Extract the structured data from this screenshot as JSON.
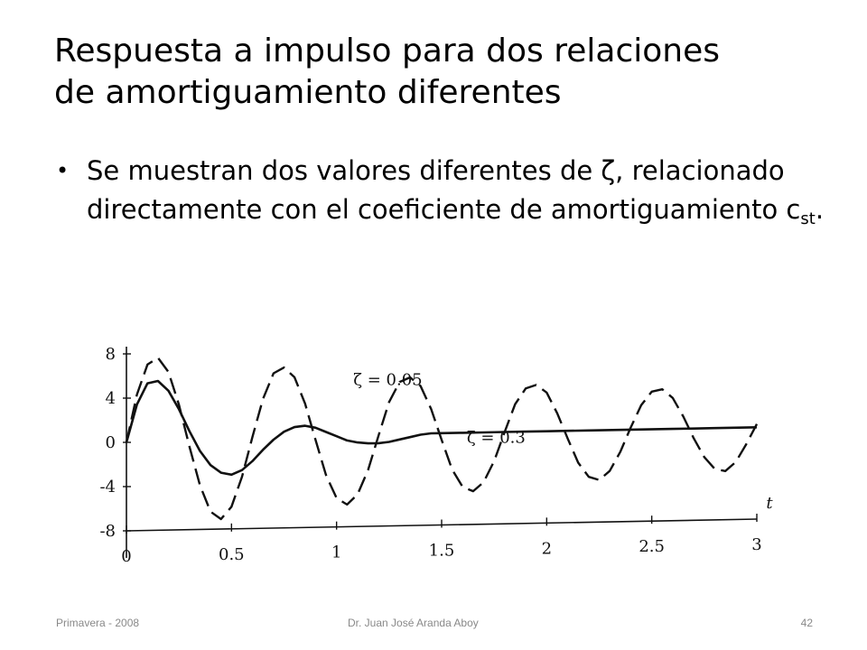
{
  "slide": {
    "title_line1": "Respuesta a impulso para dos relaciones",
    "title_line2": "de amortiguamiento diferentes",
    "bullet_prefix": "Se muestran dos valores diferentes de ζ, relacionado directamente con el coeficiente de amortiguamiento c",
    "bullet_subscript": "st",
    "bullet_suffix": ".",
    "bullet_symbol": "•"
  },
  "footer": {
    "left": "Primavera - 2008",
    "center": "Dr. Juan José Aranda Aboy",
    "right": "42"
  },
  "chart_data": {
    "type": "line",
    "xlabel": "t",
    "ylabel": "",
    "xlim": [
      0,
      3
    ],
    "ylim": [
      -8,
      8
    ],
    "xticks": [
      0,
      0.5,
      1,
      1.5,
      2,
      2.5,
      3
    ],
    "xtick_labels": [
      "0",
      "0.5",
      "1",
      "1.5",
      "2",
      "2.5",
      "3"
    ],
    "yticks": [
      8,
      4,
      0,
      -4,
      -8
    ],
    "ytick_labels": [
      "8",
      "4",
      "0",
      "-4",
      "-8"
    ],
    "grid": false,
    "annotations": [
      {
        "text": "ζ = 0.05",
        "x": 1.08,
        "y": 4.8
      },
      {
        "text": "ζ = 0.3",
        "x": 1.62,
        "y": -0.6
      }
    ],
    "series": [
      {
        "style": "dashed",
        "x": [
          0,
          0.05,
          0.1,
          0.15,
          0.2,
          0.25,
          0.3,
          0.35,
          0.4,
          0.45,
          0.5,
          0.55,
          0.6,
          0.65,
          0.7,
          0.75,
          0.8,
          0.85,
          0.9,
          0.95,
          1.0,
          1.05,
          1.1,
          1.15,
          1.2,
          1.25,
          1.3,
          1.35,
          1.4,
          1.45,
          1.5,
          1.55,
          1.6,
          1.65,
          1.7,
          1.75,
          1.8,
          1.85,
          1.9,
          1.95,
          2.0,
          2.05,
          2.1,
          2.15,
          2.2,
          2.25,
          2.3,
          2.35,
          2.4,
          2.45,
          2.5,
          2.55,
          2.6,
          2.65,
          2.7,
          2.75,
          2.8,
          2.85,
          2.9,
          2.95,
          3.0
        ],
        "values": [
          0,
          4.3,
          7.0,
          7.6,
          6.3,
          3.3,
          -0.5,
          -4.0,
          -6.4,
          -7.1,
          -6.0,
          -3.3,
          0.3,
          3.7,
          6.0,
          6.5,
          5.6,
          3.2,
          -0.1,
          -3.3,
          -5.4,
          -6.0,
          -5.1,
          -2.9,
          0.2,
          3.2,
          5.0,
          5.4,
          4.6,
          2.5,
          -0.3,
          -3.0,
          -4.6,
          -5.0,
          -4.2,
          -2.3,
          0.3,
          2.8,
          4.2,
          4.5,
          3.8,
          1.9,
          -0.4,
          -2.6,
          -3.9,
          -4.2,
          -3.4,
          -1.7,
          0.5,
          2.5,
          3.7,
          3.9,
          3.1,
          1.4,
          -0.6,
          -2.3,
          -3.4,
          -3.6,
          -2.8,
          -1.2,
          0.6
        ]
      },
      {
        "style": "solid",
        "x": [
          0,
          0.05,
          0.1,
          0.15,
          0.2,
          0.25,
          0.3,
          0.35,
          0.4,
          0.45,
          0.5,
          0.55,
          0.6,
          0.65,
          0.7,
          0.75,
          0.8,
          0.85,
          0.9,
          0.95,
          1.0,
          1.05,
          1.1,
          1.15,
          1.2,
          1.25,
          1.3,
          1.35,
          1.4,
          1.45,
          1.5,
          1.6,
          1.7,
          1.8,
          1.9,
          2.0,
          2.2,
          2.4,
          2.6,
          2.8,
          3.0
        ],
        "values": [
          0,
          3.4,
          5.3,
          5.5,
          4.6,
          2.9,
          0.9,
          -0.9,
          -2.2,
          -2.9,
          -3.1,
          -2.7,
          -1.9,
          -0.9,
          0.0,
          0.7,
          1.1,
          1.2,
          1.0,
          0.6,
          0.2,
          -0.2,
          -0.4,
          -0.5,
          -0.5,
          -0.4,
          -0.2,
          0.0,
          0.2,
          0.3,
          0.3,
          0.3,
          0.3,
          0.3,
          0.3,
          0.3,
          0.3,
          0.3,
          0.3,
          0.3,
          0.3
        ]
      }
    ]
  }
}
